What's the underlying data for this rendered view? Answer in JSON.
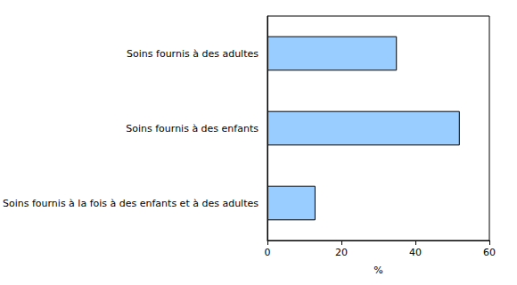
{
  "chart_data": {
    "type": "bar",
    "orientation": "horizontal",
    "categories": [
      "Soins fournis à des adultes",
      "Soins fournis à des enfants",
      "Soins fournis à la fois à des enfants et à des adultes"
    ],
    "values": [
      35,
      52,
      13
    ],
    "color": "#99ccff",
    "x_label": "%",
    "xlim": [
      0,
      60
    ],
    "xticks": [
      0,
      20,
      40,
      60
    ],
    "grid": false
  }
}
